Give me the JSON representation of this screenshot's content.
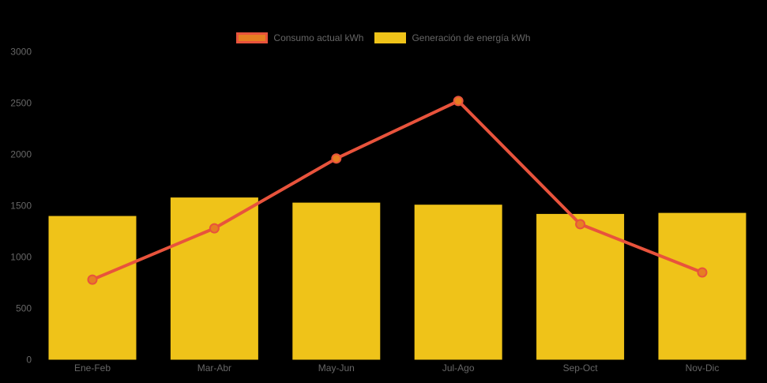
{
  "page": {
    "background": "#000000",
    "axis_text_color": "#666666"
  },
  "legend": {
    "position": "top",
    "text_color": "#666666"
  },
  "chart_data": {
    "type": "combo",
    "title": "",
    "xlabel": "",
    "ylabel": "",
    "categories": [
      "Ene-Feb",
      "Mar-Abr",
      "May-Jun",
      "Jul-Ago",
      "Sep-Oct",
      "Nov-Dic"
    ],
    "series": [
      {
        "name": "Consumo actual kWh",
        "type": "line",
        "values": [
          780,
          1280,
          1960,
          2520,
          1320,
          850
        ],
        "line_color": "#e8533c",
        "point_fill": "#e67e22",
        "line_width": 4,
        "point_radius": 5.5
      },
      {
        "name": "Generación de energía kWh",
        "type": "bar",
        "values": [
          1400,
          1580,
          1530,
          1510,
          1420,
          1430
        ],
        "bar_color": "#efc319"
      }
    ],
    "ylim": [
      0,
      3000
    ],
    "ytick_step": 500,
    "yticks": [
      "0",
      "500",
      "1000",
      "1500",
      "2000",
      "2500",
      "3000"
    ],
    "grid": false,
    "legend_position": "top"
  }
}
